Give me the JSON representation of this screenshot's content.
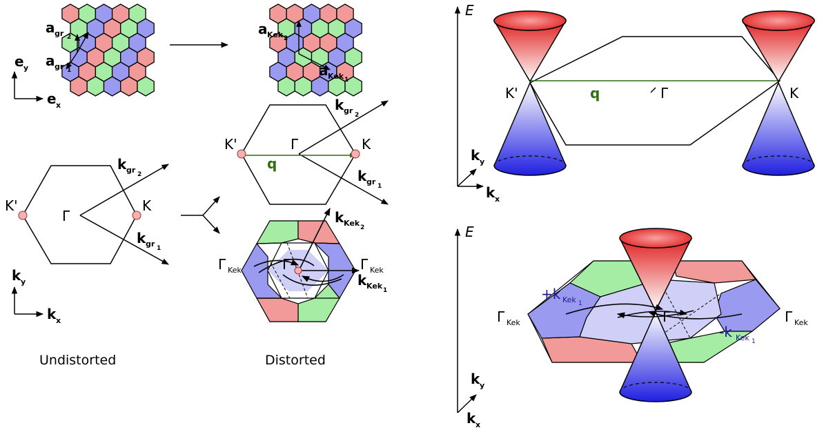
{
  "colors": {
    "red": "#f29a9a",
    "green": "#a5eca5",
    "blue": "#9a9af0",
    "lightblue": "#cfcff7",
    "qgreen": "#2f6f0f",
    "site": "#f4b1b1"
  },
  "labels": {
    "a_gr1": "a",
    "a_gr1_sub": "gr",
    "a_gr1_subsub": "1",
    "a_gr2": "a",
    "a_gr2_sub": "gr",
    "a_gr2_subsub": "2",
    "a_kek1": "a",
    "a_kek1_sub": "Kek",
    "a_kek1_subsub": "1",
    "a_kek2": "a",
    "a_kek2_sub": "Kek",
    "a_kek2_subsub": "2",
    "e_x": "e",
    "e_x_sub": "x",
    "e_y": "e",
    "e_y_sub": "y",
    "k_x": "k",
    "k_x_sub": "x",
    "k_y": "k",
    "k_y_sub": "y",
    "K": "K",
    "Kp": "K'",
    "Gamma": "Γ",
    "Gamma_kek": "Γ",
    "Gamma_kek_sub": "Kek",
    "k_gr1": "k",
    "k_gr1_sub": "gr",
    "k_gr1_subsub": "1",
    "k_gr2": "k",
    "k_gr2_sub": "gr",
    "k_gr2_subsub": "2",
    "k_kek1": "k",
    "k_kek1_sub": "Kek",
    "k_kek1_subsub": "1",
    "k_kek2": "k",
    "k_kek2_sub": "Kek",
    "k_kek2_subsub": "2",
    "q": "q",
    "E": "E",
    "plus_k_kek1": "+k",
    "minus_k_kek1": "-k",
    "kek_sub": "Kek",
    "kek_subsub": "1",
    "undistorted": "Undistorted",
    "distorted": "Distorted"
  }
}
